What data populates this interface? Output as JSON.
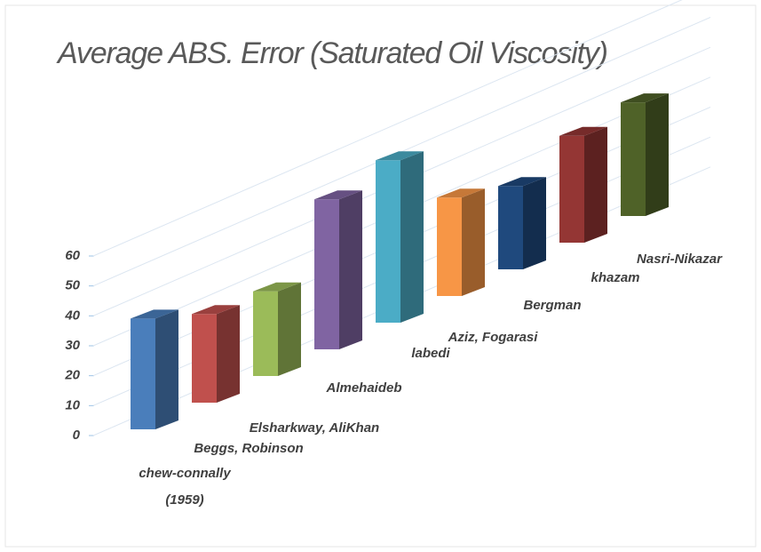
{
  "chart_data": {
    "type": "bar3d",
    "title": "Average ABS. Error (Saturated Oil Viscosity)",
    "categories": [
      "chew-connally (1959)",
      "Beggs, Robinson",
      "Elsharkway, AliKhan",
      "Almehaideb",
      "labedi",
      "Aziz, Fogarasi",
      "Bergman",
      "khazam",
      "Nasri-Nikazar"
    ],
    "values": [
      37,
      30,
      29,
      52,
      57,
      35,
      30,
      39,
      42
    ],
    "colors": [
      "#4a7ebb",
      "#c0504d",
      "#9bbb59",
      "#8064a2",
      "#4bacc6",
      "#f79646",
      "#1f497d",
      "#943634",
      "#4f6228"
    ],
    "ylim": [
      0,
      60
    ],
    "yticks": [
      0,
      10,
      20,
      30,
      40,
      50,
      60
    ],
    "grid": true
  }
}
